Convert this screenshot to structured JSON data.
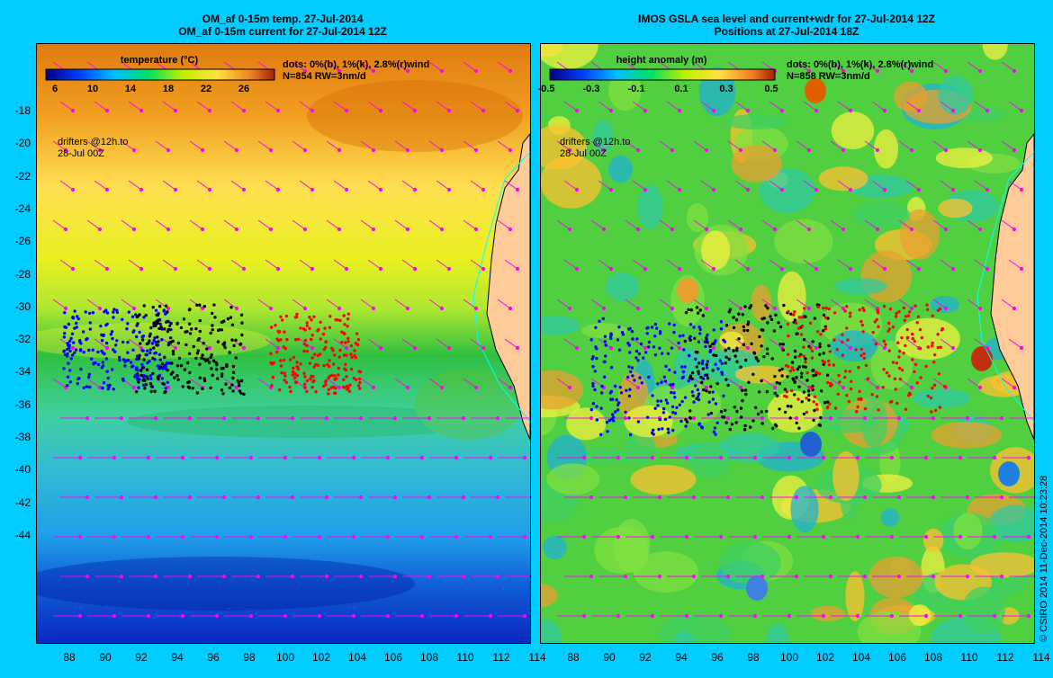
{
  "panels": [
    {
      "title_line1": "OM_af 0-15m temp. 27-Jul-2014",
      "title_line2": "OM_af 0-15m current for 27-Jul-2014 12Z",
      "colorbar_title": "temperature (°C)",
      "colorbar_ticks": [
        "6",
        "10",
        "14",
        "18",
        "22",
        "26"
      ],
      "legend_line1": "dots: 0%(b), 1%(k), 2.8%(r)wind",
      "legend_line2": "N=854 RW=3nm/d",
      "drifters_line1": "drifters @12h.to",
      "drifters_line2": "28-Jul 00Z"
    },
    {
      "title_line1": "IMOS GSLA sea level and current+wdr for 27-Jul-2014 12Z",
      "title_line2": "Positions at 27-Jul-2014 18Z",
      "colorbar_title": "height anomaly (m)",
      "colorbar_ticks": [
        "-0.5",
        "-0.3",
        "-0.1",
        "0.1",
        "0.3",
        "0.5"
      ],
      "legend_line1": "dots: 0%(b), 1%(k), 2.8%(r)wind",
      "legend_line2": "N=858 RW=3nm/d",
      "drifters_line1": "drifters @12h.to",
      "drifters_line2": "28-Jul 00Z"
    }
  ],
  "lat_ticks": [
    "-18",
    "-20",
    "-22",
    "-24",
    "-26",
    "-28",
    "-30",
    "-32",
    "-34",
    "-36",
    "-38",
    "-40",
    "-42",
    "-44"
  ],
  "lon_ticks": [
    "88",
    "90",
    "92",
    "94",
    "96",
    "98",
    "100",
    "102",
    "104",
    "106",
    "108",
    "110",
    "112",
    "114"
  ],
  "copyright": "© CSIRO 2014   11-Dec-2014 10:23:28",
  "colors": {
    "background": "#00ccff",
    "drift_blue": "#0000ff",
    "drift_black": "#000000",
    "drift_red": "#ff0000",
    "arrows": "#ff00ff",
    "land": "#ffcc99"
  }
}
